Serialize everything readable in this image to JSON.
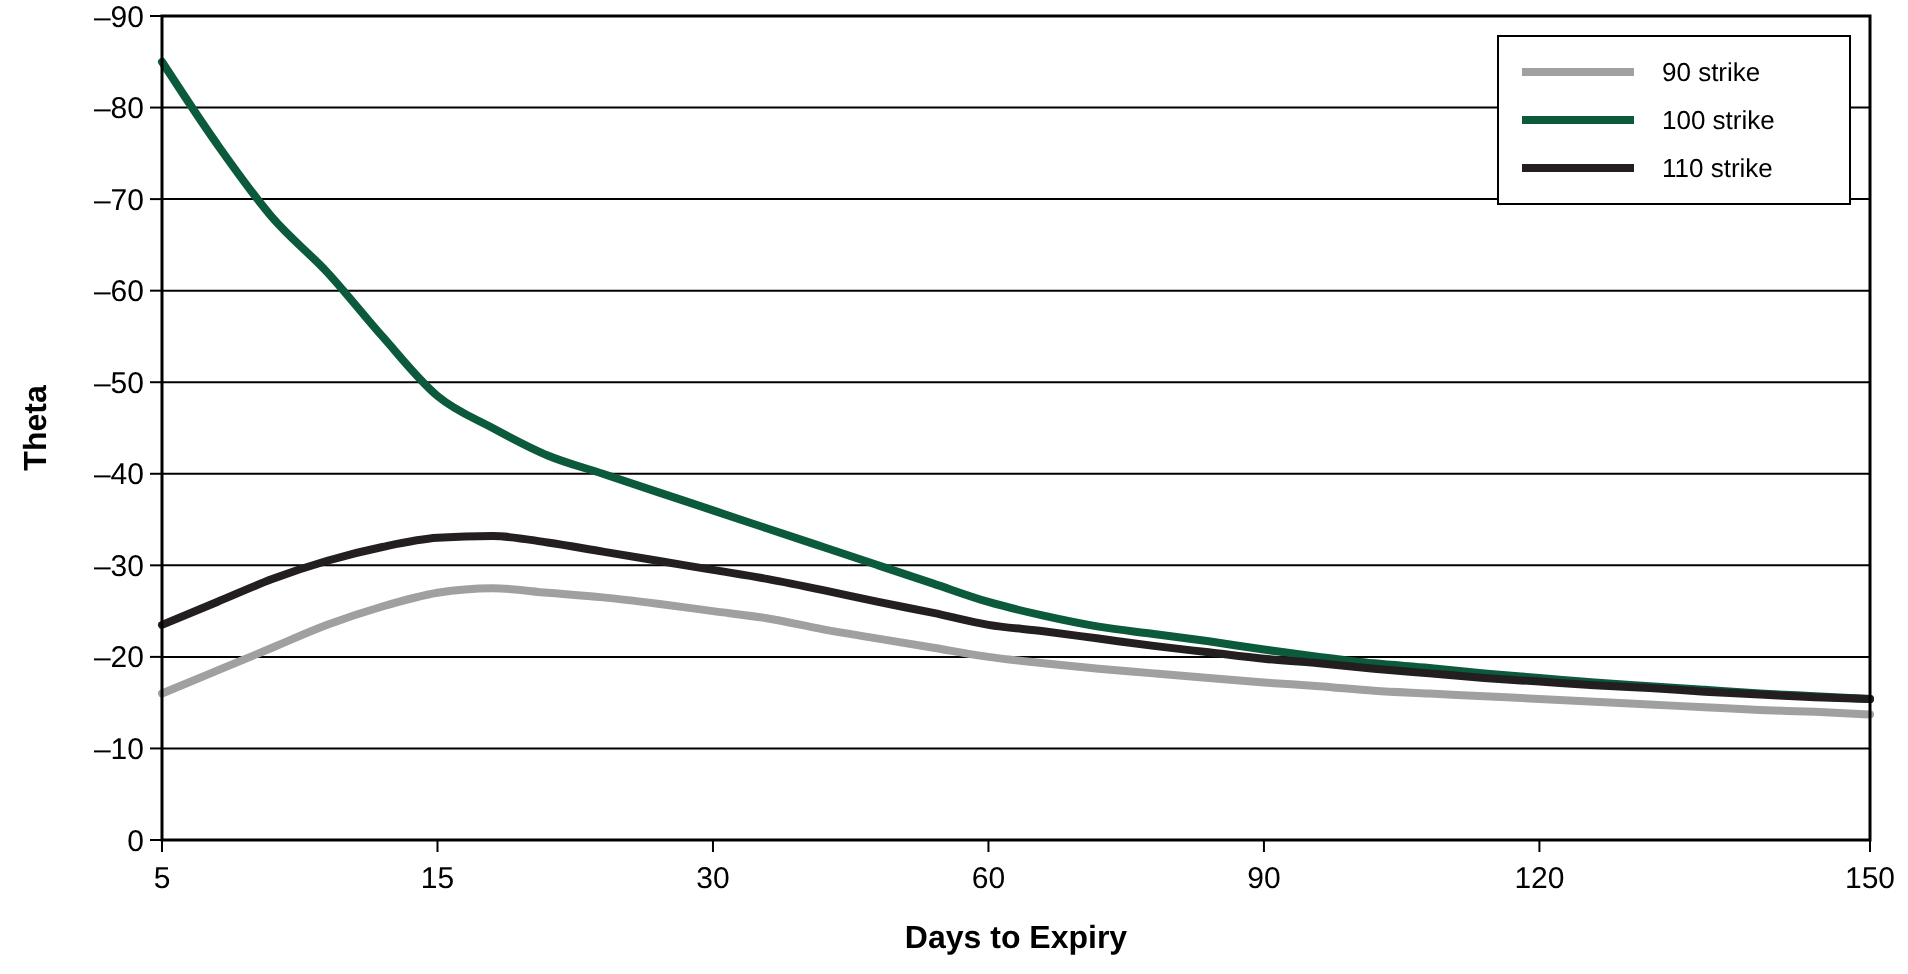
{
  "chart_data": {
    "type": "line",
    "xlabel": "Days to Expiry",
    "ylabel": "Theta",
    "categories": [
      "5",
      null,
      null,
      null,
      null,
      "15",
      null,
      null,
      null,
      null,
      "30",
      null,
      null,
      null,
      null,
      "60",
      null,
      null,
      null,
      null,
      "90",
      null,
      null,
      null,
      null,
      "120",
      null,
      null,
      null,
      null,
      null,
      "150"
    ],
    "ylim": [
      0,
      -90
    ],
    "yticks": [
      {
        "value": 0,
        "label": "0"
      },
      {
        "value": -10,
        "label": "–10"
      },
      {
        "value": -20,
        "label": "–20"
      },
      {
        "value": -30,
        "label": "–30"
      },
      {
        "value": -40,
        "label": "–40"
      },
      {
        "value": -50,
        "label": "–50"
      },
      {
        "value": -60,
        "label": "–60"
      },
      {
        "value": -70,
        "label": "–70"
      },
      {
        "value": -80,
        "label": "–80"
      },
      {
        "value": -90,
        "label": "–90"
      }
    ],
    "grid": "y",
    "legend": "top right",
    "marker": "none",
    "line_style": "solid",
    "series": [
      {
        "name": "90 strike",
        "color": "#a0a0a0",
        "values": [
          -16,
          -18.5,
          -21,
          -23.5,
          -25.5,
          -27,
          -27.5,
          -27,
          -26.5,
          -25.8,
          -25,
          -24.2,
          -23,
          -22,
          -21,
          -20,
          -19.3,
          -18.7,
          -18.2,
          -17.7,
          -17.2,
          -16.8,
          -16.3,
          -16,
          -15.7,
          -15.4,
          -15.1,
          -14.8,
          -14.5,
          -14.2,
          -14,
          -13.7
        ]
      },
      {
        "name": "100 strike",
        "color": "#0b5a3c",
        "values": [
          -85,
          -76,
          -68,
          -62,
          -55,
          -48.5,
          -45,
          -42,
          -40,
          -38,
          -36,
          -34,
          -32,
          -30,
          -28,
          -26,
          -24.5,
          -23.3,
          -22.5,
          -21.7,
          -20.8,
          -20,
          -19.3,
          -18.8,
          -18.2,
          -17.7,
          -17.2,
          -16.8,
          -16.4,
          -16,
          -15.7,
          -15.4
        ]
      },
      {
        "name": "110 strike",
        "color": "#231f20",
        "values": [
          -23.5,
          -26,
          -28.5,
          -30.5,
          -32,
          -33,
          -33.2,
          -32.5,
          -31.5,
          -30.5,
          -29.5,
          -28.5,
          -27.3,
          -26,
          -24.8,
          -23.5,
          -22.8,
          -22,
          -21.2,
          -20.5,
          -19.8,
          -19.3,
          -18.7,
          -18.2,
          -17.7,
          -17.3,
          -16.9,
          -16.6,
          -16.2,
          -15.9,
          -15.6,
          -15.4
        ]
      }
    ]
  }
}
